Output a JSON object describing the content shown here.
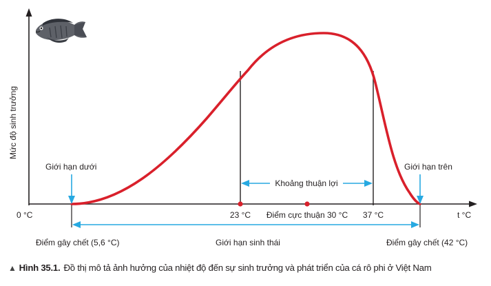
{
  "colors": {
    "curve": "#d9202b",
    "accent": "#27a9e1",
    "axis": "#231f20",
    "marker": "#d9202b"
  },
  "icons": {
    "fish": "tilapia-fish-icon"
  },
  "axes": {
    "y_label": "Mức độ sinh trưởng",
    "x_unit": "t °C",
    "origin": "0 °C"
  },
  "points": {
    "lower_limit": "Giới hạn dưới",
    "upper_limit": "Giới hạn trên",
    "death_low": "Điểm gây chết (5,6 °C)",
    "death_high": "Điểm gây chết (42 °C)",
    "t23": "23 °C",
    "optimum": "Điểm cực thuận 30 °C",
    "t37": "37 °C"
  },
  "ranges": {
    "favorable": "Khoảng thuận lợi",
    "ecological": "Giới hạn sinh thái"
  },
  "caption": {
    "number": "Hình 35.1.",
    "text": "Đồ thị mô tả ảnh hưởng của nhiệt độ đến sự sinh trưởng và phát triển của cá rô phi ở Việt Nam"
  },
  "chart_data": {
    "type": "line",
    "x_unit": "°C",
    "key_points": [
      {
        "x": 5.6,
        "y": 0
      },
      {
        "x": 23,
        "y": null
      },
      {
        "x": 30,
        "y": "max"
      },
      {
        "x": 37,
        "y": null
      },
      {
        "x": 42,
        "y": 0
      }
    ]
  }
}
